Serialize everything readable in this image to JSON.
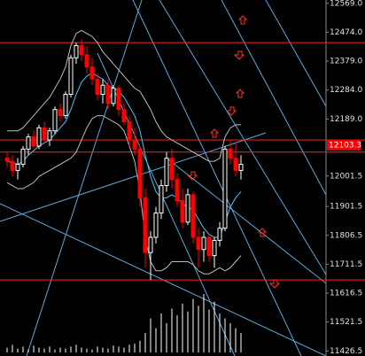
{
  "chart_data": {
    "type": "candlestick",
    "open": [
      12060,
      12050,
      12020,
      12040,
      12090,
      12130,
      12100,
      12160,
      12120,
      12150,
      12220,
      12200,
      12270,
      12390,
      12430,
      12400,
      12360,
      12320,
      12270,
      12300,
      12240,
      12290,
      12220,
      12180,
      12120,
      12090,
      11930,
      11750,
      11800,
      11880,
      11970,
      12060,
      11990,
      11920,
      11850,
      11940,
      11800,
      11760,
      11800,
      11740,
      11790,
      11830,
      12090,
      12060,
      12020
    ],
    "high": [
      12080,
      12070,
      12060,
      12100,
      12140,
      12150,
      12170,
      12180,
      12160,
      12230,
      12240,
      12280,
      12400,
      12440,
      12450,
      12430,
      12390,
      12340,
      12320,
      12320,
      12300,
      12300,
      12240,
      12200,
      12160,
      12100,
      11960,
      11820,
      11900,
      11990,
      12080,
      12090,
      12010,
      11960,
      11960,
      11950,
      11830,
      11820,
      11810,
      11800,
      11850,
      12100,
      12120,
      12110,
      12070
    ],
    "low": [
      12030,
      12000,
      11990,
      12030,
      12070,
      12090,
      12090,
      12110,
      12100,
      12140,
      12180,
      12190,
      12260,
      12370,
      12380,
      12340,
      12300,
      12250,
      12240,
      12220,
      12230,
      12200,
      12170,
      12100,
      12070,
      11900,
      11700,
      11660,
      11780,
      11860,
      11950,
      11960,
      11900,
      11830,
      11840,
      11780,
      11700,
      11720,
      11720,
      11700,
      11770,
      11820,
      12040,
      12000,
      11990
    ],
    "close": [
      12050,
      12020,
      12040,
      12090,
      12130,
      12100,
      12160,
      12120,
      12150,
      12220,
      12200,
      12270,
      12390,
      12430,
      12400,
      12360,
      12320,
      12270,
      12300,
      12240,
      12290,
      12220,
      12180,
      12120,
      12090,
      11930,
      11750,
      11800,
      11880,
      11970,
      12060,
      11990,
      11920,
      11850,
      11940,
      11800,
      11760,
      11800,
      11740,
      11790,
      11830,
      12090,
      12060,
      12020,
      12040
    ],
    "up_color": "#ffffff",
    "down_color": "#ff0000",
    "series": [
      {
        "color": "#4fc3f7",
        "values": [
          12050,
          12045,
          12040,
          12050,
          12070,
          12085,
          12100,
          12110,
          12120,
          12140,
          12160,
          12180,
          12220,
          12270,
          12310,
          12330,
          12340,
          12330,
          12320,
          12300,
          12290,
          12280,
          12260,
          12230,
          12200,
          12150,
          12070,
          12000,
          11950,
          11930,
          11930,
          11940,
          11930,
          11910,
          11900,
          11890,
          11860,
          11830,
          11810,
          11800,
          11800,
          11850,
          11900,
          11930,
          11950
        ]
      },
      {
        "color": "#bdbdbd",
        "values": [
          12150,
          12150,
          12150,
          12160,
          12180,
          12200,
          12220,
          12240,
          12260,
          12290,
          12320,
          12360,
          12430,
          12470,
          12480,
          12470,
          12460,
          12440,
          12410,
          12390,
          12370,
          12350,
          12330,
          12310,
          12290,
          12280,
          12250,
          12220,
          12180,
          12150,
          12130,
          12120,
          12110,
          12100,
          12090,
          12080,
          12070,
          12060,
          12050,
          12050,
          12060,
          12130,
          12160,
          12170,
          12170
        ]
      },
      {
        "color": "#bdbdbd",
        "values": [
          11980,
          11970,
          11960,
          11960,
          11970,
          11980,
          12000,
          12010,
          12020,
          12030,
          12040,
          12050,
          12060,
          12080,
          12120,
          12160,
          12190,
          12200,
          12200,
          12190,
          12180,
          12170,
          12150,
          12100,
          12050,
          11950,
          11800,
          11720,
          11690,
          11690,
          11700,
          11720,
          11720,
          11720,
          11720,
          11710,
          11690,
          11680,
          11680,
          11690,
          11700,
          11690,
          11700,
          11720,
          11740
        ]
      }
    ],
    "volume": [
      5,
      8,
      4,
      6,
      3,
      7,
      5,
      4,
      6,
      3,
      5,
      4,
      6,
      8,
      5,
      4,
      3,
      6,
      5,
      4,
      7,
      6,
      5,
      8,
      9,
      12,
      20,
      35,
      25,
      40,
      30,
      45,
      38,
      50,
      42,
      55,
      48,
      60,
      44,
      52,
      40,
      35,
      30,
      25,
      20
    ],
    "volume_lim": [
      0,
      100
    ],
    "levels": [
      12440,
      12120,
      12080,
      11660
    ],
    "level_color": "#ff2020",
    "last_price": 12103.3,
    "ylim": [
      11410,
      12580
    ],
    "yticks": [
      {
        "value": 12569,
        "label": "12569.0"
      },
      {
        "value": 12474,
        "label": "12474.0"
      },
      {
        "value": 12379,
        "label": "12379.0"
      },
      {
        "value": 12284,
        "label": "12284.0"
      },
      {
        "value": 12189,
        "label": "12189.0"
      },
      12001.5,
      11901.5,
      11806.5,
      11711.5,
      11616.5,
      11521.5,
      11426.5
    ]
  }
}
